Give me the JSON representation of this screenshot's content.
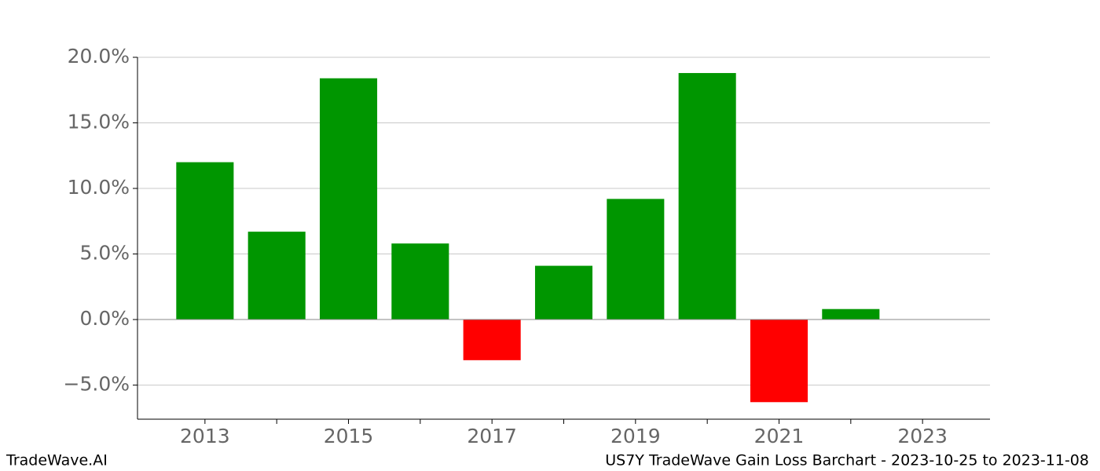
{
  "chart_data": {
    "type": "bar",
    "title": "US7Y TradeWave Gain Loss Barchart - 2023-10-25 to 2023-11-08",
    "source": "TradeWave.AI",
    "x": [
      2013,
      2014,
      2015,
      2016,
      2017,
      2018,
      2019,
      2020,
      2021,
      2022
    ],
    "values": [
      12.0,
      6.7,
      18.4,
      5.8,
      -3.1,
      4.1,
      9.2,
      18.8,
      -6.3,
      0.8
    ],
    "colors": [
      "#009600",
      "#009600",
      "#009600",
      "#009600",
      "#ff0000",
      "#009600",
      "#009600",
      "#009600",
      "#ff0000",
      "#009600"
    ],
    "xlim": [
      2012.06,
      2023.94
    ],
    "xticks": [
      2013,
      2015,
      2017,
      2019,
      2021,
      2023
    ],
    "xminorticks": [
      2014,
      2016,
      2018,
      2020,
      2022
    ],
    "ylim": [
      -7.6,
      20
    ],
    "yticks": [
      {
        "value": -5,
        "label": "−5.0%"
      },
      {
        "value": 0,
        "label": "0.0%"
      },
      {
        "value": 5,
        "label": "5.0%"
      },
      {
        "value": 10,
        "label": "10.0%"
      },
      {
        "value": 15,
        "label": "15.0%"
      },
      {
        "value": 20,
        "label": "20.0%"
      }
    ],
    "grid": true
  }
}
